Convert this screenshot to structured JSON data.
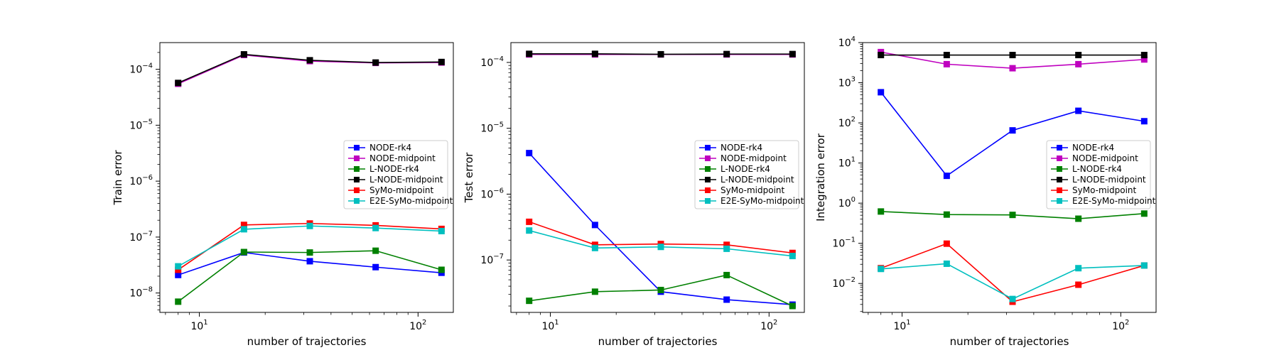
{
  "colors": {
    "NODE-rk4": "#0000ff",
    "NODE-midpoint": "#bf00bf",
    "L-NODE-rk4": "#008000",
    "L-NODE-midpoint": "#000000",
    "SyMo-midpoint": "#ff0000",
    "E2E-SyMo-midpoint": "#00bfbf"
  },
  "chart_data": [
    {
      "type": "line",
      "xscale": "log",
      "yscale": "log",
      "xlabel": "number of trajectories",
      "ylabel": "Train error",
      "x": [
        8,
        16,
        32,
        64,
        128
      ],
      "xlim": [
        6.6,
        145
      ],
      "ylim": [
        4.5e-09,
        0.0003
      ],
      "x_ticks": [
        {
          "value": 10,
          "base": "10",
          "exp": "1"
        },
        {
          "value": 100,
          "base": "10",
          "exp": "2"
        }
      ],
      "y_ticks": [
        {
          "value": 1e-08,
          "base": "10",
          "exp": "−8"
        },
        {
          "value": 1e-07,
          "base": "10",
          "exp": "−7"
        },
        {
          "value": 1e-06,
          "base": "10",
          "exp": "−6"
        },
        {
          "value": 1e-05,
          "base": "10",
          "exp": "−5"
        },
        {
          "value": 0.0001,
          "base": "10",
          "exp": "−4"
        }
      ],
      "grid": false,
      "legend_position": "center-right",
      "series": [
        {
          "name": "NODE-rk4",
          "values": [
            2.1e-08,
            5.3e-08,
            3.7e-08,
            2.9e-08,
            2.3e-08
          ]
        },
        {
          "name": "NODE-midpoint",
          "values": [
            5.5e-05,
            0.00018,
            0.00014,
            0.00013,
            0.000132
          ]
        },
        {
          "name": "L-NODE-rk4",
          "values": [
            7e-09,
            5.4e-08,
            5.3e-08,
            5.7e-08,
            2.6e-08
          ]
        },
        {
          "name": "L-NODE-midpoint",
          "values": [
            5.7e-05,
            0.000185,
            0.000145,
            0.000132,
            0.000135
          ]
        },
        {
          "name": "SyMo-midpoint",
          "values": [
            2.6e-08,
            1.65e-07,
            1.75e-07,
            1.62e-07,
            1.4e-07
          ]
        },
        {
          "name": "E2E-SyMo-midpoint",
          "values": [
            3e-08,
            1.38e-07,
            1.58e-07,
            1.45e-07,
            1.28e-07
          ]
        }
      ]
    },
    {
      "type": "line",
      "xscale": "log",
      "yscale": "log",
      "xlabel": "number of trajectories",
      "ylabel": "Test error",
      "x": [
        8,
        16,
        32,
        64,
        128
      ],
      "xlim": [
        6.6,
        145
      ],
      "ylim": [
        1.6e-08,
        0.0002
      ],
      "x_ticks": [
        {
          "value": 10,
          "base": "10",
          "exp": "1"
        },
        {
          "value": 100,
          "base": "10",
          "exp": "2"
        }
      ],
      "y_ticks": [
        {
          "value": 1e-07,
          "base": "10",
          "exp": "−7"
        },
        {
          "value": 1e-06,
          "base": "10",
          "exp": "−6"
        },
        {
          "value": 1e-05,
          "base": "10",
          "exp": "−5"
        },
        {
          "value": 0.0001,
          "base": "10",
          "exp": "−4"
        }
      ],
      "grid": false,
      "legend_position": "center-right",
      "series": [
        {
          "name": "NODE-rk4",
          "values": [
            4.2e-06,
            3.4e-07,
            3.3e-08,
            2.5e-08,
            2.1e-08
          ]
        },
        {
          "name": "NODE-midpoint",
          "values": [
            0.000132,
            0.000132,
            0.000132,
            0.000132,
            0.000132
          ]
        },
        {
          "name": "L-NODE-rk4",
          "values": [
            2.4e-08,
            3.3e-08,
            3.5e-08,
            5.9e-08,
            2e-08
          ]
        },
        {
          "name": "L-NODE-midpoint",
          "values": [
            0.000135,
            0.000135,
            0.000133,
            0.000134,
            0.000134
          ]
        },
        {
          "name": "SyMo-midpoint",
          "values": [
            3.8e-07,
            1.7e-07,
            1.75e-07,
            1.7e-07,
            1.28e-07
          ]
        },
        {
          "name": "E2E-SyMo-midpoint",
          "values": [
            2.8e-07,
            1.52e-07,
            1.58e-07,
            1.48e-07,
            1.15e-07
          ]
        }
      ]
    },
    {
      "type": "line",
      "xscale": "log",
      "yscale": "log",
      "xlabel": "number of trajectories",
      "ylabel": "Integration error",
      "x": [
        8,
        16,
        32,
        64,
        128
      ],
      "xlim": [
        6.6,
        145
      ],
      "ylim": [
        0.0019,
        10000.0
      ],
      "x_ticks": [
        {
          "value": 10,
          "base": "10",
          "exp": "1"
        },
        {
          "value": 100,
          "base": "10",
          "exp": "2"
        }
      ],
      "y_ticks": [
        {
          "value": 0.01,
          "base": "10",
          "exp": "−2"
        },
        {
          "value": 0.1,
          "base": "10",
          "exp": "−1"
        },
        {
          "value": 1.0,
          "base": "10",
          "exp": "0"
        },
        {
          "value": 10.0,
          "base": "10",
          "exp": "1"
        },
        {
          "value": 100.0,
          "base": "10",
          "exp": "2"
        },
        {
          "value": 1000.0,
          "base": "10",
          "exp": "3"
        },
        {
          "value": 10000.0,
          "base": "10",
          "exp": "4"
        }
      ],
      "grid": false,
      "legend_position": "center-right",
      "series": [
        {
          "name": "NODE-rk4",
          "values": [
            580,
            4.8,
            65,
            200,
            110
          ]
        },
        {
          "name": "NODE-midpoint",
          "values": [
            5800,
            2900,
            2300,
            2900,
            3800
          ]
        },
        {
          "name": "L-NODE-rk4",
          "values": [
            0.62,
            0.52,
            0.51,
            0.41,
            0.55
          ]
        },
        {
          "name": "L-NODE-midpoint",
          "values": [
            4900,
            4900,
            4900,
            4900,
            4900
          ]
        },
        {
          "name": "SyMo-midpoint",
          "values": [
            0.024,
            0.098,
            0.0035,
            0.0093,
            0.028
          ]
        },
        {
          "name": "E2E-SyMo-midpoint",
          "values": [
            0.023,
            0.031,
            0.0041,
            0.024,
            0.028
          ]
        }
      ]
    }
  ]
}
